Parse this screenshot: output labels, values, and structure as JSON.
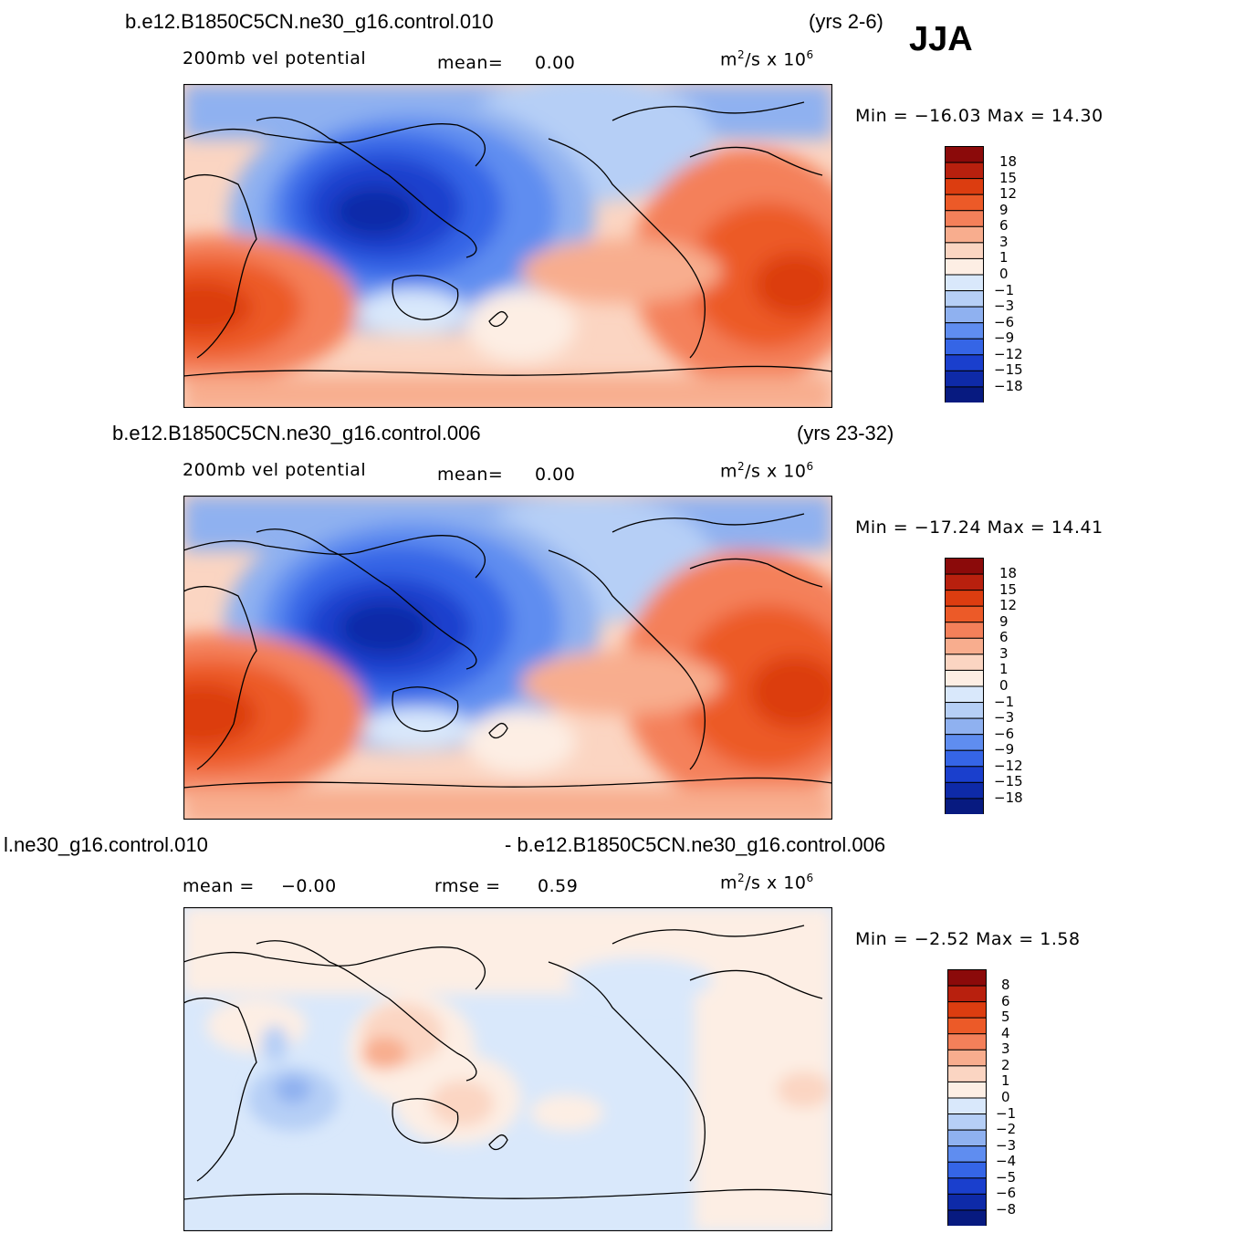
{
  "season": "JJA",
  "panels": [
    {
      "case": "b.e12.B1850C5CN.ne30_g16.control.010",
      "years": "(yrs 2-6)",
      "field": "200mb  vel  potential",
      "stat1_label": "mean=",
      "stat1_value": "0.00",
      "units_base": "m",
      "units_sup1": "2",
      "units_mid": "/s  x  10",
      "units_sup2": "6",
      "minmax": "Min  =  −16.03  Max  =    14.30",
      "levels": [
        "18",
        "15",
        "12",
        "9",
        "6",
        "3",
        "1",
        "0",
        "−1",
        "−3",
        "−6",
        "−9",
        "−12",
        "−15",
        "−18"
      ],
      "style": "full"
    },
    {
      "case": "b.e12.B1850C5CN.ne30_g16.control.006",
      "years": "(yrs 23-32)",
      "field": "200mb  vel  potential",
      "stat1_label": "mean=",
      "stat1_value": "0.00",
      "units_base": "m",
      "units_sup1": "2",
      "units_mid": "/s  x  10",
      "units_sup2": "6",
      "minmax": "Min  =  −17.24  Max  =    14.41",
      "levels": [
        "18",
        "15",
        "12",
        "9",
        "6",
        "3",
        "1",
        "0",
        "−1",
        "−3",
        "−6",
        "−9",
        "−12",
        "−15",
        "−18"
      ],
      "style": "full"
    },
    {
      "case_left": "l.ne30_g16.control.010",
      "case_right": "- b.e12.B1850C5CN.ne30_g16.control.006",
      "stat1_label": "mean =",
      "stat1_value": "−0.00",
      "stat2_label": "rmse =",
      "stat2_value": "0.59",
      "units_base": "m",
      "units_sup1": "2",
      "units_mid": "/s  x  10",
      "units_sup2": "6",
      "minmax": "Min  =   −2.52  Max  =     1.58",
      "levels": [
        "8",
        "6",
        "5",
        "4",
        "3",
        "2",
        "1",
        "0",
        "−1",
        "−2",
        "−3",
        "−4",
        "−5",
        "−6",
        "−8"
      ],
      "style": "diff"
    }
  ],
  "colors": {
    "scale": [
      "#8b0a0a",
      "#b8200e",
      "#dc3d10",
      "#ec5a28",
      "#f4805a",
      "#f8ad8e",
      "#fbd5c2",
      "#fdeee4",
      "#d9e8fb",
      "#b6cff6",
      "#8fb1f0",
      "#5f8df0",
      "#3565e6",
      "#1a3fcd",
      "#0e2aa8",
      "#071a80"
    ]
  }
}
